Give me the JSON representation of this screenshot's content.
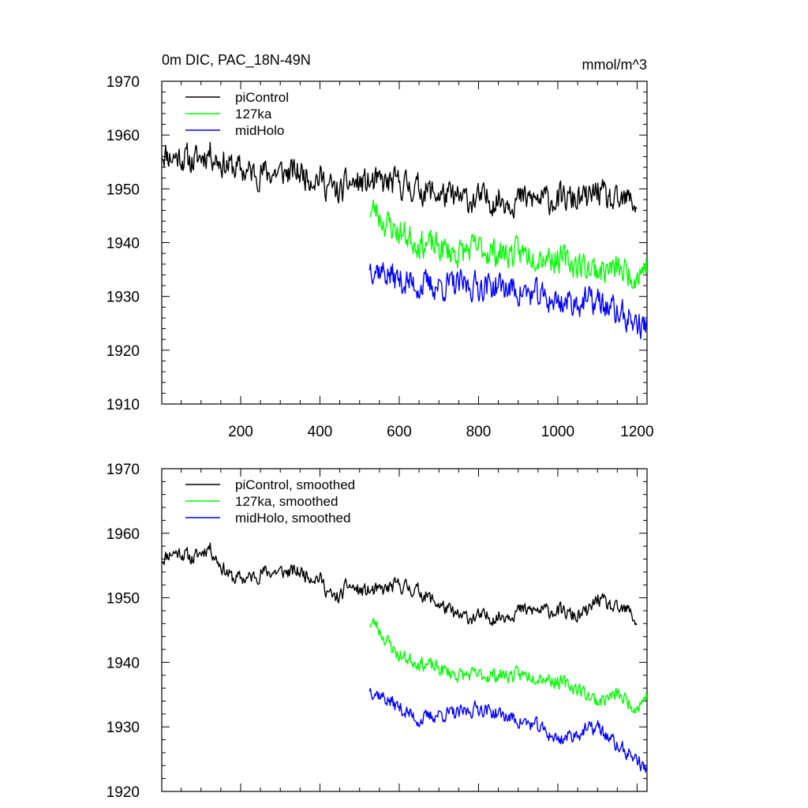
{
  "figure": {
    "title_left": "0m DIC, PAC_18N-49N",
    "title_right": "mmol/m^3"
  },
  "chart_data": [
    {
      "type": "line",
      "title": "0m DIC, PAC_18N-49N",
      "units": "mmol/m^3",
      "xlim": [
        1,
        1225
      ],
      "ylim": [
        1910,
        1970
      ],
      "x_ticks": [
        200,
        400,
        600,
        800,
        1000,
        1200
      ],
      "x_tick_labels": [
        "200",
        "400",
        "600",
        "800",
        "1000",
        "1200"
      ],
      "y_ticks": [
        1910,
        1920,
        1930,
        1940,
        1950,
        1960,
        1970
      ],
      "y_tick_labels": [
        "1910",
        "1920",
        "1930",
        "1940",
        "1950",
        "1960",
        "1970"
      ],
      "legend": [
        "piControl",
        "127ka",
        "midHolo"
      ],
      "legend_location": "top-left",
      "series": [
        {
          "name": "piControl",
          "color": "#000000",
          "noise": 4.2,
          "seed": 11,
          "x": [
            1,
            25,
            50,
            80,
            100,
            120,
            150,
            180,
            220,
            260,
            300,
            350,
            400,
            430,
            450,
            470,
            500,
            550,
            600,
            650,
            700,
            750,
            800,
            850,
            900,
            950,
            1000,
            1050,
            1080,
            1100,
            1120,
            1150,
            1180,
            1200
          ],
          "y": [
            1957,
            1956,
            1956,
            1955,
            1956,
            1957,
            1955,
            1954,
            1953,
            1953,
            1953,
            1953,
            1952,
            1950,
            1949,
            1951,
            1951,
            1951,
            1951,
            1950,
            1949,
            1948,
            1948,
            1948,
            1948,
            1948,
            1948,
            1948,
            1948,
            1950,
            1948,
            1947,
            1948,
            1947
          ]
        },
        {
          "name": "127ka",
          "color": "#00ff00",
          "noise": 4.2,
          "seed": 23,
          "x": [
            525,
            540,
            560,
            600,
            650,
            700,
            750,
            800,
            850,
            900,
            950,
            1000,
            1050,
            1100,
            1150,
            1200,
            1225
          ],
          "y": [
            1946,
            1946,
            1944,
            1942,
            1940,
            1939,
            1938,
            1939,
            1938,
            1938,
            1938,
            1937,
            1936,
            1935,
            1935,
            1934,
            1936
          ]
        },
        {
          "name": "midHolo",
          "color": "#0000ff",
          "noise": 4.2,
          "seed": 37,
          "x": [
            525,
            550,
            600,
            650,
            700,
            750,
            800,
            850,
            900,
            950,
            1000,
            1050,
            1100,
            1150,
            1200,
            1225
          ],
          "y": [
            1936,
            1935,
            1933,
            1932,
            1932,
            1932,
            1932,
            1932,
            1931,
            1930,
            1929,
            1929,
            1929,
            1927,
            1925,
            1924
          ]
        }
      ]
    },
    {
      "type": "line",
      "title": "",
      "xlim": [
        1,
        1225
      ],
      "ylim": [
        1920,
        1970
      ],
      "x_ticks": [
        200,
        400,
        600,
        800,
        1000,
        1200
      ],
      "x_tick_labels": [],
      "y_ticks": [
        1920,
        1930,
        1940,
        1950,
        1960,
        1970
      ],
      "y_tick_labels": [
        "1920",
        "1930",
        "1940",
        "1950",
        "1960",
        "1970"
      ],
      "legend": [
        "piControl, smoothed",
        "127ka, smoothed",
        "midHolo, smoothed"
      ],
      "legend_location": "top-left",
      "series": [
        {
          "name": "piControl, smoothed",
          "color": "#000000",
          "noise": 1.8,
          "seed": 11,
          "x": [
            1,
            25,
            50,
            80,
            100,
            120,
            150,
            180,
            220,
            260,
            300,
            350,
            400,
            430,
            450,
            470,
            500,
            550,
            600,
            650,
            700,
            750,
            800,
            850,
            900,
            950,
            1000,
            1050,
            1080,
            1100,
            1120,
            1150,
            1180,
            1200
          ],
          "y": [
            1956,
            1957,
            1957,
            1956,
            1957,
            1958,
            1955,
            1953,
            1953,
            1954,
            1954,
            1954,
            1953,
            1950,
            1950,
            1952,
            1951,
            1951,
            1952,
            1951,
            1949,
            1947,
            1947,
            1947,
            1948,
            1948,
            1948,
            1947,
            1948,
            1950,
            1949,
            1948,
            1948,
            1946
          ]
        },
        {
          "name": "127ka, smoothed",
          "color": "#00ff00",
          "noise": 1.8,
          "seed": 23,
          "x": [
            525,
            540,
            560,
            600,
            650,
            700,
            750,
            800,
            850,
            900,
            950,
            1000,
            1050,
            1100,
            1150,
            1200,
            1225
          ],
          "y": [
            1946,
            1946,
            1944,
            1941,
            1940,
            1939,
            1938,
            1938,
            1938,
            1938,
            1938,
            1937,
            1936,
            1934,
            1935,
            1933,
            1935
          ]
        },
        {
          "name": "midHolo, smoothed",
          "color": "#0000ff",
          "noise": 1.8,
          "seed": 37,
          "x": [
            525,
            550,
            600,
            650,
            700,
            750,
            800,
            850,
            900,
            950,
            1000,
            1050,
            1100,
            1150,
            1200,
            1225
          ],
          "y": [
            1936,
            1935,
            1933,
            1931,
            1932,
            1932,
            1933,
            1932,
            1931,
            1930,
            1928,
            1929,
            1930,
            1927,
            1925,
            1923
          ]
        }
      ]
    }
  ]
}
